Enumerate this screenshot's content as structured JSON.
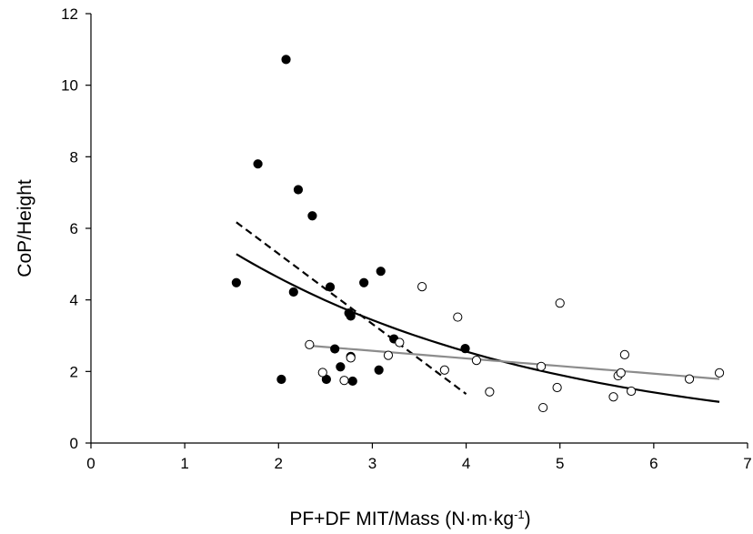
{
  "chart_data": {
    "type": "scatter",
    "xlabel": "PF+DF MIT/Mass (N·m·kg",
    "xlabel_sup": "-1",
    "xlabel_end": ")",
    "ylabel": "CoP/Height",
    "xlim": [
      0,
      7
    ],
    "ylim": [
      0,
      12
    ],
    "xticks": [
      "0",
      "1",
      "2",
      "3",
      "4",
      "5",
      "6",
      "7"
    ],
    "yticks": [
      "0",
      "2",
      "4",
      "6",
      "8",
      "10",
      "12"
    ],
    "grid": false,
    "series": [
      {
        "marker": "filled-circle",
        "color": "#000000",
        "points": [
          [
            1.55,
            4.48
          ],
          [
            1.78,
            7.8
          ],
          [
            2.03,
            1.78
          ],
          [
            2.08,
            10.72
          ],
          [
            2.16,
            4.22
          ],
          [
            2.21,
            7.08
          ],
          [
            2.36,
            6.35
          ],
          [
            2.51,
            1.78
          ],
          [
            2.55,
            4.36
          ],
          [
            2.6,
            2.63
          ],
          [
            2.66,
            2.13
          ],
          [
            2.75,
            3.63
          ],
          [
            2.77,
            3.55
          ],
          [
            2.77,
            2.42
          ],
          [
            2.79,
            1.73
          ],
          [
            2.91,
            4.48
          ],
          [
            3.07,
            2.04
          ],
          [
            3.09,
            4.8
          ],
          [
            3.23,
            2.91
          ],
          [
            3.99,
            2.64
          ]
        ]
      },
      {
        "marker": "open-circle",
        "color": "#000000",
        "points": [
          [
            2.33,
            2.75
          ],
          [
            2.47,
            1.97
          ],
          [
            2.7,
            1.75
          ],
          [
            2.77,
            2.38
          ],
          [
            3.17,
            2.45
          ],
          [
            3.29,
            2.81
          ],
          [
            3.53,
            4.37
          ],
          [
            3.77,
            2.04
          ],
          [
            3.91,
            3.52
          ],
          [
            4.11,
            2.31
          ],
          [
            4.25,
            1.43
          ],
          [
            4.8,
            2.14
          ],
          [
            4.82,
            0.99
          ],
          [
            4.97,
            1.55
          ],
          [
            5.0,
            3.91
          ],
          [
            5.57,
            1.29
          ],
          [
            5.62,
            1.88
          ],
          [
            5.65,
            1.96
          ],
          [
            5.69,
            2.47
          ],
          [
            5.76,
            1.45
          ],
          [
            6.38,
            1.79
          ],
          [
            6.7,
            1.96
          ]
        ]
      }
    ],
    "trendlines": [
      {
        "style": "dashed",
        "color": "#000000",
        "form": "linear",
        "x_range": [
          1.55,
          4.0
        ],
        "y_start": 6.17,
        "y_end": 1.37
      },
      {
        "style": "solid",
        "color": "#000000",
        "form": "exponential",
        "x_range": [
          1.55,
          6.7
        ],
        "y_start": 5.28,
        "y_end": 1.15
      },
      {
        "style": "solid",
        "color": "#8c8c8c",
        "form": "linear",
        "x_range": [
          2.33,
          6.7
        ],
        "y_start": 2.72,
        "y_end": 1.79
      }
    ]
  }
}
